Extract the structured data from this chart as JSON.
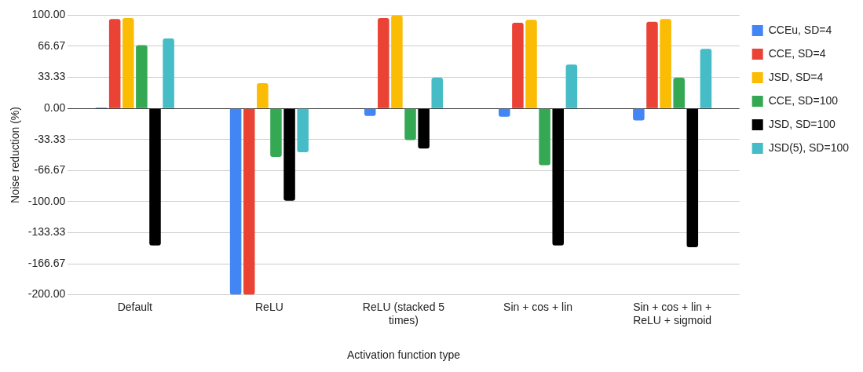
{
  "chart_data": {
    "type": "bar",
    "xlabel": "Activation function type",
    "ylabel": "Noise reduction (%)",
    "categories": [
      "Default",
      "ReLU",
      "ReLU (stacked 5 times)",
      "Sin + cos + lin",
      "Sin + cos + lin + ReLU + sigmoid"
    ],
    "series": [
      {
        "name": "CCEu, SD=4",
        "color": "#4285f4",
        "values": [
          1,
          -200,
          -8,
          -9,
          -13
        ]
      },
      {
        "name": "CCE, SD=4",
        "color": "#ea4335",
        "values": [
          96,
          -200,
          97,
          92,
          93
        ]
      },
      {
        "name": "JSD, SD=4",
        "color": "#fbbc04",
        "values": [
          97,
          27,
          100,
          95,
          96
        ]
      },
      {
        "name": "CCE, SD=100",
        "color": "#34a853",
        "values": [
          68,
          -52,
          -34,
          -61,
          33
        ]
      },
      {
        "name": "JSD, SD=100",
        "color": "#000000",
        "values": [
          -147,
          -99,
          -43,
          -147,
          -149
        ]
      },
      {
        "name": "JSD(5), SD=100",
        "color": "#46bdc6",
        "values": [
          75,
          -47,
          33,
          47,
          64
        ]
      }
    ],
    "ylim": [
      -200,
      100
    ],
    "yticks": [
      {
        "value": -200,
        "label": "-200.00"
      },
      {
        "value": -166.67,
        "label": "-166.67"
      },
      {
        "value": -133.33,
        "label": "-133.33"
      },
      {
        "value": -100,
        "label": "-100.00"
      },
      {
        "value": -66.67,
        "label": "-66.67"
      },
      {
        "value": -33.33,
        "label": "-33.33"
      },
      {
        "value": 0,
        "label": "0.00"
      },
      {
        "value": 33.33,
        "label": "33.33"
      },
      {
        "value": 66.67,
        "label": "66.67"
      },
      {
        "value": 100,
        "label": "100.00"
      }
    ],
    "grid": "y",
    "legend": "right"
  }
}
